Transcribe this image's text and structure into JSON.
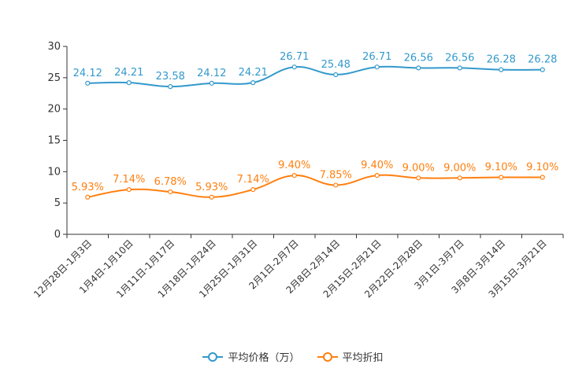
{
  "chart_data": {
    "type": "line",
    "categories": [
      "12月28日-1月3日",
      "1月4日-1月10日",
      "1月11日-1月17日",
      "1月18日-1月24日",
      "1月25日-1月31日",
      "2月1日-2月7日",
      "2月8日-2月14日",
      "2月15日-2月21日",
      "2月22日-2月28日",
      "3月1日-3月7日",
      "3月8日-3月14日",
      "3月15日-3月21日"
    ],
    "series": [
      {
        "name": "平均价格（万）",
        "color": "#3399cc",
        "values": [
          24.12,
          24.21,
          23.58,
          24.12,
          24.21,
          26.71,
          25.48,
          26.71,
          26.56,
          26.56,
          26.28,
          26.28
        ],
        "labels": [
          "24.12",
          "24.21",
          "23.58",
          "24.12",
          "24.21",
          "26.71",
          "25.48",
          "26.71",
          "26.56",
          "26.56",
          "26.28",
          "26.28"
        ]
      },
      {
        "name": "平均折扣",
        "color": "#ff7f0e",
        "values": [
          5.93,
          7.14,
          6.78,
          5.93,
          7.14,
          9.4,
          7.85,
          9.4,
          9.0,
          9.0,
          9.1,
          9.1
        ],
        "labels": [
          "5.93%",
          "7.14%",
          "6.78%",
          "5.93%",
          "7.14%",
          "9.40%",
          "7.85%",
          "9.40%",
          "9.00%",
          "9.00%",
          "9.10%",
          "9.10%"
        ]
      }
    ],
    "yticks": [
      "0",
      "5",
      "10",
      "15",
      "20",
      "25",
      "30"
    ],
    "ylim": [
      0,
      30
    ],
    "xlabel": "",
    "ylabel": "",
    "title": "",
    "legend_position": "bottom-center"
  }
}
